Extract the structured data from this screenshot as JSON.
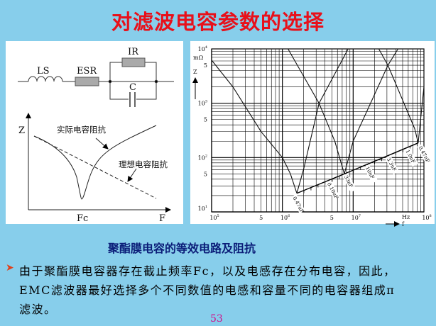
{
  "title": "对滤波电容参数的选择",
  "circuit": {
    "labels": {
      "ls": "LS",
      "esr": "ESR",
      "ir": "IR",
      "c": "C"
    }
  },
  "impedance_sketch": {
    "y_label": "Z",
    "x_label": "F",
    "fc_label": "Fc",
    "actual_label": "实际电容阻抗",
    "ideal_label": "理想电容阻抗"
  },
  "chart_data": {
    "type": "line",
    "x_scale": "log",
    "y_scale": "log",
    "xlim": [
      100000,
      100000000
    ],
    "ylim": [
      10,
      10000
    ],
    "grid": true,
    "x_unit": "Hz",
    "x_label": "f",
    "y_label": "Z",
    "y_unit": "mΩ",
    "x_tick_labels": [
      {
        "value": 100000,
        "base": "10",
        "exp": "5"
      },
      {
        "value": 500000,
        "base": "5",
        "exp": ""
      },
      {
        "value": 1000000,
        "base": "10",
        "exp": "6"
      },
      {
        "value": 5000000,
        "base": "5",
        "exp": ""
      },
      {
        "value": 10000000,
        "base": "10",
        "exp": "7"
      },
      {
        "value": 100000000,
        "base": "10",
        "exp": "8"
      }
    ],
    "y_tick_labels": [
      {
        "value": 10000,
        "base": "10",
        "exp": "4"
      },
      {
        "value": 5000,
        "base": "5",
        "exp": ""
      },
      {
        "value": 1000,
        "base": "10",
        "exp": "3"
      },
      {
        "value": 500,
        "base": "5",
        "exp": ""
      },
      {
        "value": 100,
        "base": "10",
        "exp": "2"
      },
      {
        "value": 50,
        "base": "5",
        "exp": ""
      },
      {
        "value": 10,
        "base": "10",
        "exp": "1"
      }
    ],
    "series": [
      {
        "points": [
          [
            100000,
            6200
          ],
          [
            200000,
            2000
          ],
          [
            500000,
            300
          ],
          [
            1000000,
            100
          ],
          [
            1300000,
            50
          ],
          [
            1600000,
            22
          ]
        ]
      },
      {
        "points": [
          [
            1600000,
            22
          ],
          [
            2000000,
            62
          ],
          [
            3300000,
            1000
          ],
          [
            8500000,
            10000
          ]
        ]
      },
      {
        "points": [
          [
            1200000,
            10000
          ],
          [
            3300000,
            1000
          ],
          [
            5500000,
            200
          ],
          [
            7500000,
            50
          ]
        ]
      },
      {
        "points": [
          [
            7500000,
            50
          ],
          [
            10000000,
            200
          ],
          [
            31000000,
            5000
          ],
          [
            43000000,
            10000
          ]
        ]
      },
      {
        "points": [
          [
            23000000,
            10000
          ],
          [
            31000000,
            5000
          ],
          [
            74000000,
            340
          ],
          [
            83000000,
            186
          ]
        ]
      },
      {
        "points": [
          [
            83000000,
            186
          ],
          [
            100000000,
            2000
          ]
        ]
      }
    ],
    "resonance_line": [
      [
        1600000,
        22
      ],
      [
        7500000,
        50
      ],
      [
        83000000,
        186
      ]
    ],
    "capacitance_labels": [
      {
        "text": "0.47uF",
        "f": 1600000
      },
      {
        "text": "0.10uF",
        "f": 4900000
      },
      {
        "text": "33nF",
        "f": 8500000
      },
      {
        "text": "10nF",
        "f": 17000000
      },
      {
        "text": "3.3nF",
        "f": 34000000
      },
      {
        "text": "1.0nF",
        "f": 63000000
      },
      {
        "text": "0.47nF",
        "f": 96000000
      }
    ]
  },
  "caption": "聚酯膜电容的等效电路及阻抗",
  "body": {
    "lines": [
      "由于聚酯膜电容器存在截止频率Fc，以及电感存在分布电容，因此，",
      "EMC滤波器最好选择多个不同数值的电感和容量不同的电容器组成π",
      "滤波。"
    ]
  },
  "page_number": "53",
  "colors": {
    "background": "#87CEEB",
    "title": "#e8101a",
    "caption": "#0b1d78",
    "page_number": "#d0108a",
    "bullet": "#e0401a"
  }
}
